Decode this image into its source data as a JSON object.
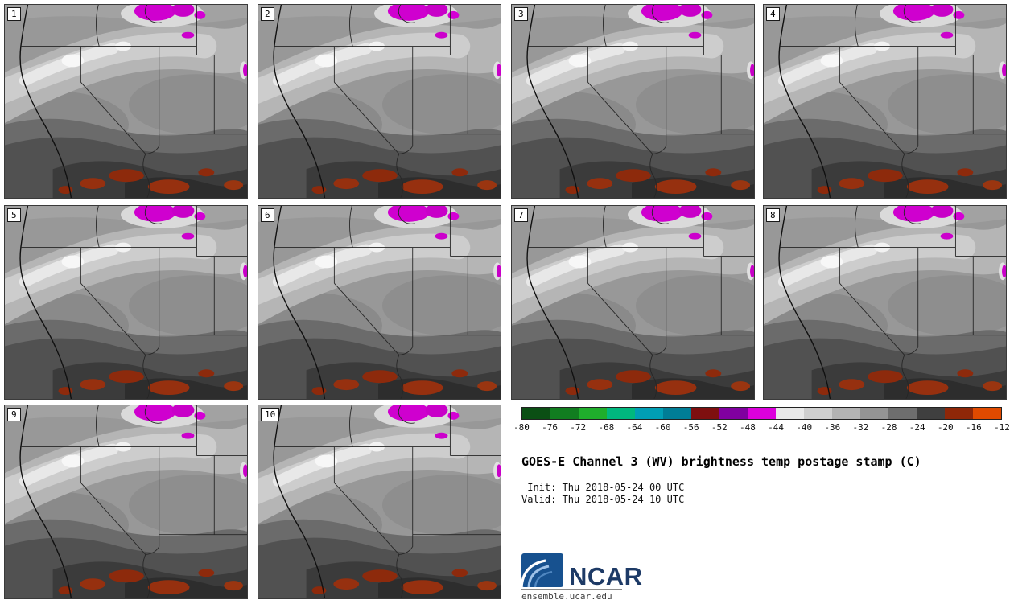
{
  "title": "GOES-E Channel 3 (WV) brightness temp postage stamp (C)",
  "timestamps": {
    "init": " Init: Thu 2018-05-24 00 UTC",
    "valid": "Valid: Thu 2018-05-24 10 UTC"
  },
  "panels": [
    {
      "label": "1"
    },
    {
      "label": "2"
    },
    {
      "label": "3"
    },
    {
      "label": "4"
    },
    {
      "label": "5"
    },
    {
      "label": "6"
    },
    {
      "label": "7"
    },
    {
      "label": "8"
    },
    {
      "label": "9"
    },
    {
      "label": "10"
    }
  ],
  "colorbar": {
    "units": "C",
    "ticks": [
      -80,
      -76,
      -72,
      -68,
      -64,
      -60,
      -56,
      -52,
      -48,
      -44,
      -40,
      -36,
      -32,
      -28,
      -24,
      -20,
      -16,
      -12
    ],
    "segment_colors": [
      "#0b4f14",
      "#117d20",
      "#1fae2c",
      "#00b87e",
      "#009eb4",
      "#007d96",
      "#7e0f0f",
      "#8000a0",
      "#dc00dc",
      "#e9e9e9",
      "#cfcfcf",
      "#b3b3b3",
      "#949494",
      "#6e6e6e",
      "#3f3f3f",
      "#8f2708",
      "#e04a00"
    ]
  },
  "logo": {
    "name": "NCAR",
    "caption": "ensemble.ucar.edu",
    "brand_color": "#17518f",
    "text_color": "#1d3a66"
  },
  "chart_data": {
    "type": "heatmap",
    "title": "GOES-E Channel 3 (WV) brightness temp postage stamp (C)",
    "variable": "brightness temp",
    "units": "C",
    "panels": [
      "1",
      "2",
      "3",
      "4",
      "5",
      "6",
      "7",
      "8",
      "9",
      "10"
    ],
    "colorbar_ticks": [
      -80,
      -76,
      -72,
      -68,
      -64,
      -60,
      -56,
      -52,
      -48,
      -44,
      -40,
      -36,
      -32,
      -28,
      -24,
      -20,
      -16,
      -12
    ],
    "colorbar_range": [
      -80,
      -12
    ],
    "init": "Thu 2018-05-24 00 UTC",
    "valid": "Thu 2018-05-24 10 UTC",
    "legend_position": "bottom-right"
  }
}
